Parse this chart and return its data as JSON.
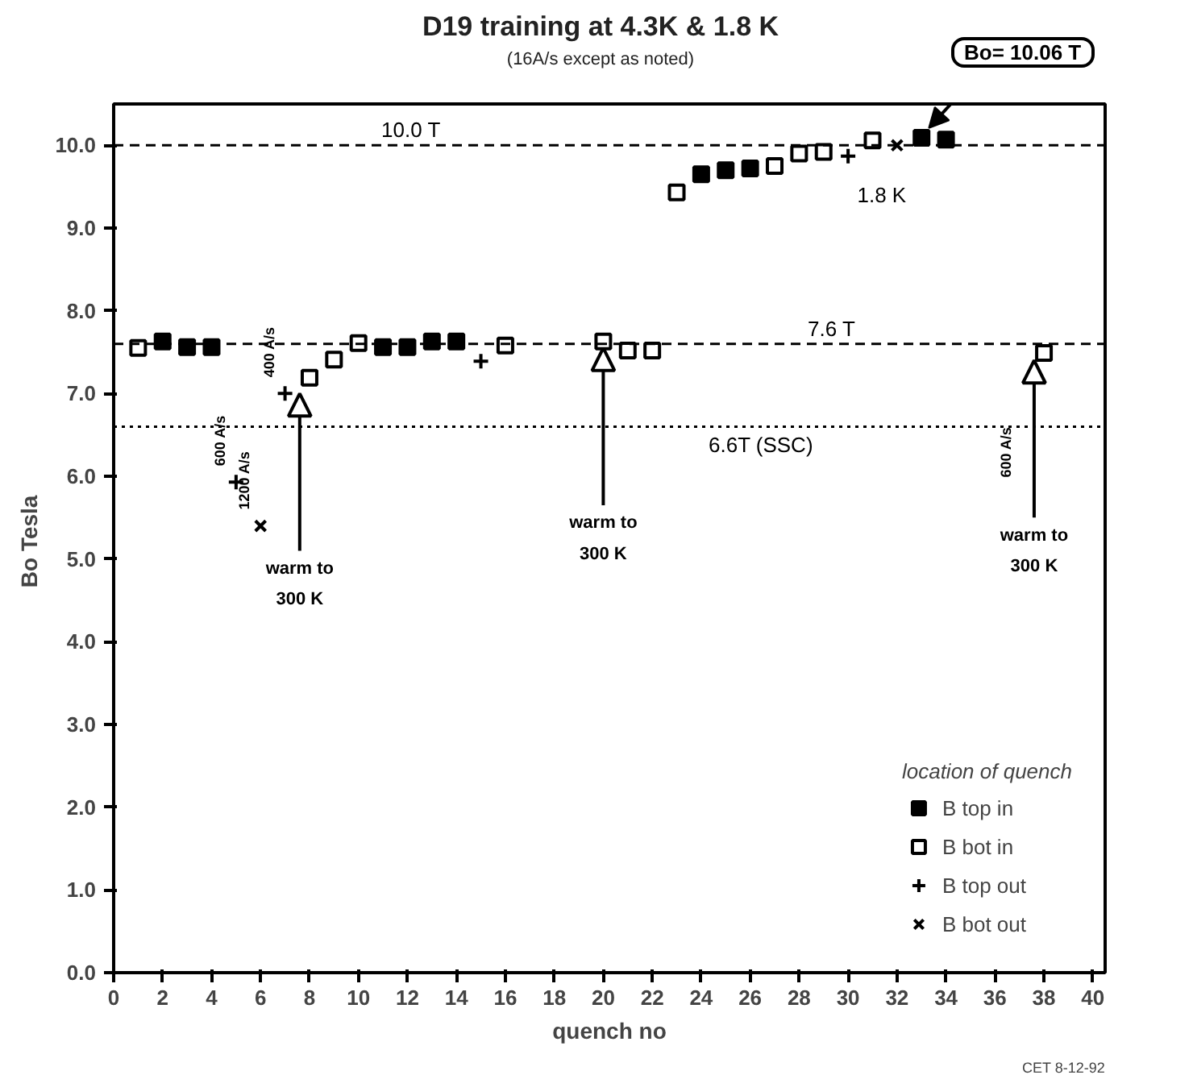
{
  "chart_data": {
    "type": "scatter",
    "title": "D19 training at 4.3K & 1.8 K",
    "subtitle": "(16A/s except as noted)",
    "xlabel": "quench no",
    "ylabel": "Bo  Tesla",
    "legend_title": "location of quench",
    "legend": "bottom right",
    "grid": false,
    "xlim": [
      0,
      40.5
    ],
    "ylim": [
      0,
      10.5
    ],
    "xticks": [
      0,
      2,
      4,
      6,
      8,
      10,
      12,
      14,
      16,
      18,
      20,
      22,
      24,
      26,
      28,
      30,
      32,
      34,
      36,
      38,
      40
    ],
    "yticks": [
      {
        "value": 0,
        "label": "0.0"
      },
      {
        "value": 1,
        "label": "1.0"
      },
      {
        "value": 2,
        "label": "2.0"
      },
      {
        "value": 3,
        "label": "3.0"
      },
      {
        "value": 4,
        "label": "4.0"
      },
      {
        "value": 5,
        "label": "5.0"
      },
      {
        "value": 6,
        "label": "6.0"
      },
      {
        "value": 7,
        "label": "7.0"
      },
      {
        "value": 8,
        "label": "8.0"
      },
      {
        "value": 9,
        "label": "9.0"
      },
      {
        "value": 10,
        "label": "10.0"
      }
    ],
    "series": [
      {
        "name": "B top in",
        "color": "#000000",
        "marker": "square",
        "x": [
          2,
          3,
          4,
          11,
          12,
          13,
          14,
          24,
          25,
          26,
          33,
          34
        ],
        "values": [
          7.63,
          7.56,
          7.56,
          7.56,
          7.56,
          7.63,
          7.63,
          9.65,
          9.7,
          9.72,
          10.09,
          10.07
        ]
      },
      {
        "name": "B bot in",
        "color": "#000000",
        "marker": "square_open",
        "x": [
          1,
          8,
          9,
          10,
          16,
          20,
          21,
          22,
          23,
          27,
          28,
          29,
          31,
          38
        ],
        "values": [
          7.55,
          7.19,
          7.41,
          7.61,
          7.58,
          7.63,
          7.52,
          7.52,
          9.43,
          9.75,
          9.9,
          9.92,
          10.06,
          7.49
        ]
      },
      {
        "name": "B top out",
        "color": "#000000",
        "marker": "cross",
        "x": [
          5,
          7,
          15,
          30
        ],
        "values": [
          5.93,
          7.0,
          7.39,
          9.87
        ]
      },
      {
        "name": "B bot out",
        "color": "#000000",
        "marker": "x",
        "x": [
          6,
          32
        ],
        "values": [
          5.4,
          10.0
        ]
      }
    ],
    "ref_lines": [
      {
        "axis": "y",
        "value": 10.0,
        "label": "10.0 T",
        "line_style": "dashed",
        "color": "#000000"
      },
      {
        "axis": "y",
        "value": 7.6,
        "label": "7.6 T",
        "line_style": "dashed",
        "color": "#000000"
      },
      {
        "axis": "y",
        "value": 6.6,
        "label": "6.6T (SSC)",
        "line_style": "dotted",
        "color": "#000000"
      }
    ],
    "annotations": [
      "1.8 K",
      {
        "text": "warm to\n300 K",
        "x": 7.6,
        "y": 7.0
      },
      {
        "text": "warm to\n300 K",
        "x": 20,
        "y": 7.55
      },
      {
        "text": "warm to\n300 K",
        "x": 37.6,
        "y": 7.4
      },
      {
        "text": "600 A/s",
        "x": 5,
        "y": 5.93
      },
      {
        "text": "1200 A/s",
        "x": 6,
        "y": 5.4
      },
      {
        "text": "400 A/s",
        "x": 7,
        "y": 7.0
      },
      "600 A/s",
      "Bo= 10.06 T",
      "CET 8-12-92"
    ]
  }
}
